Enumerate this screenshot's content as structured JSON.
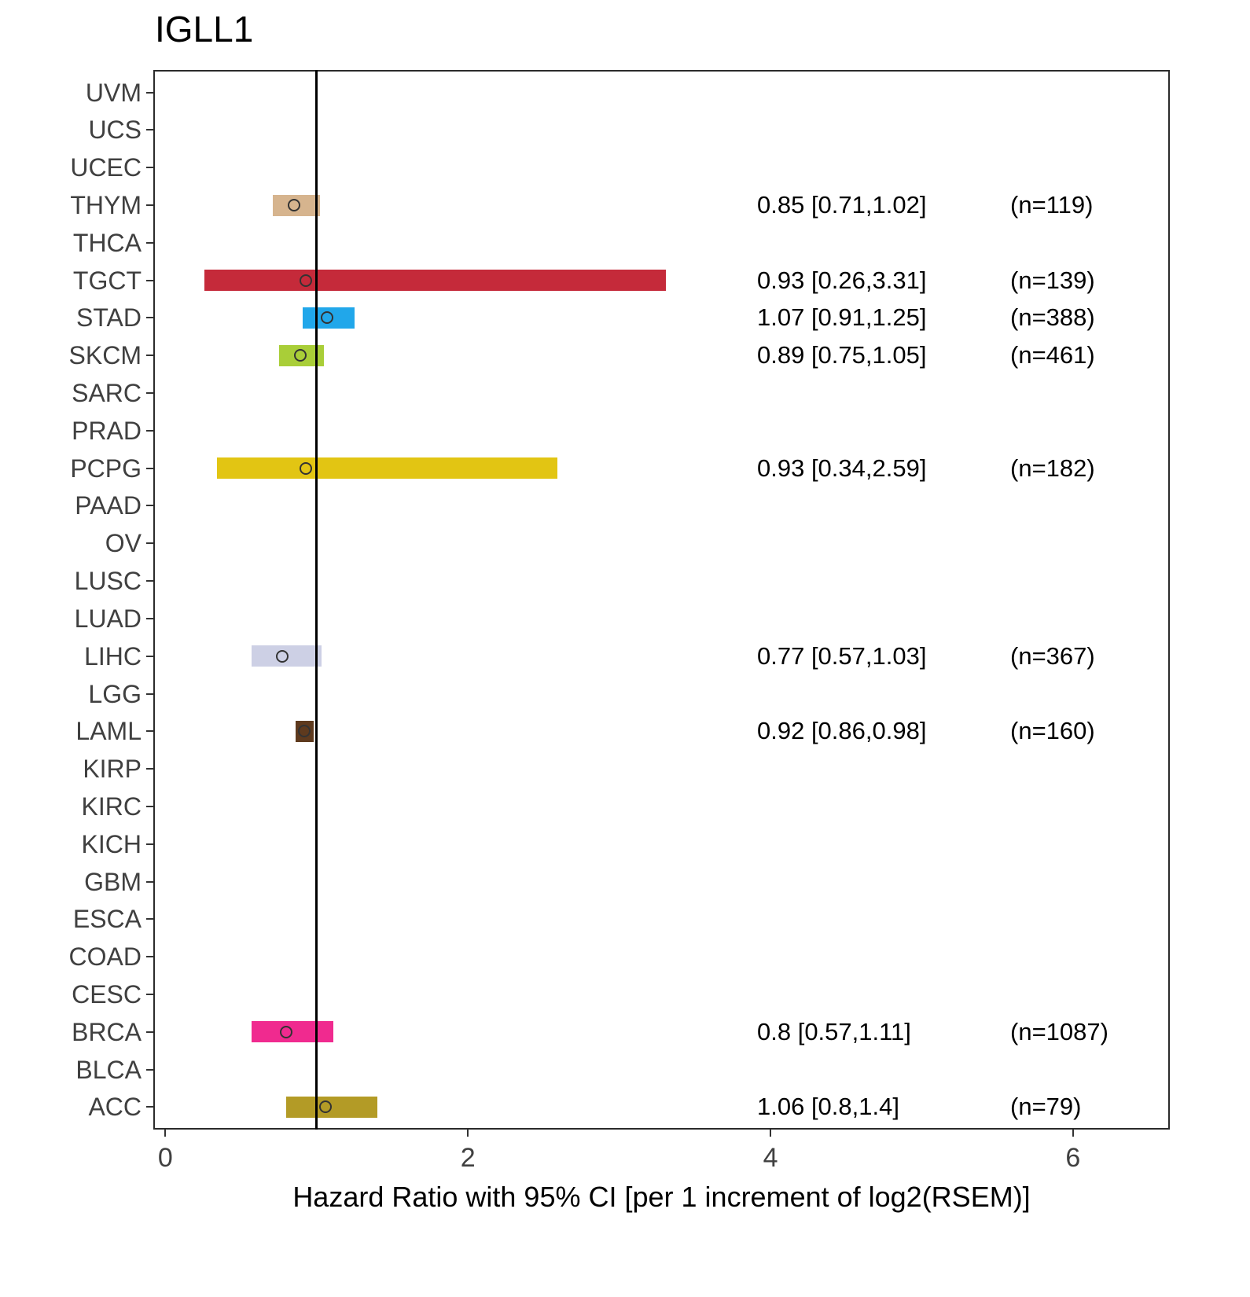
{
  "chart_data": {
    "type": "forest",
    "title": "IGLL1",
    "xlabel": "Hazard Ratio with 95% CI [per 1 increment of log2(RSEM)]",
    "xlim": [
      -0.08,
      6.64
    ],
    "x_ticks": [
      0,
      2,
      4,
      6
    ],
    "reference_line_x": 1,
    "grid": false,
    "legend": "none",
    "rows": [
      {
        "label": "UVM"
      },
      {
        "label": "UCS"
      },
      {
        "label": "UCEC"
      },
      {
        "label": "THYM",
        "estimate": 0.85,
        "lower": 0.71,
        "upper": 1.02,
        "n": 119,
        "color": "#D6B48E",
        "ci_text": "0.85 [0.71,1.02]",
        "n_text": "(n=119)"
      },
      {
        "label": "THCA"
      },
      {
        "label": "TGCT",
        "estimate": 0.93,
        "lower": 0.26,
        "upper": 3.31,
        "n": 139,
        "color": "#C52A3A",
        "ci_text": "0.93 [0.26,3.31]",
        "n_text": "(n=139)"
      },
      {
        "label": "STAD",
        "estimate": 1.07,
        "lower": 0.91,
        "upper": 1.25,
        "n": 388,
        "color": "#21A7EA",
        "ci_text": "1.07 [0.91,1.25]",
        "n_text": "(n=388)"
      },
      {
        "label": "SKCM",
        "estimate": 0.89,
        "lower": 0.75,
        "upper": 1.05,
        "n": 461,
        "color": "#A9CE38",
        "ci_text": "0.89 [0.75,1.05]",
        "n_text": "(n=461)"
      },
      {
        "label": "SARC"
      },
      {
        "label": "PRAD"
      },
      {
        "label": "PCPG",
        "estimate": 0.93,
        "lower": 0.34,
        "upper": 2.59,
        "n": 182,
        "color": "#E2C513",
        "ci_text": "0.93 [0.34,2.59]",
        "n_text": "(n=182)"
      },
      {
        "label": "PAAD"
      },
      {
        "label": "OV"
      },
      {
        "label": "LUSC"
      },
      {
        "label": "LUAD"
      },
      {
        "label": "LIHC",
        "estimate": 0.77,
        "lower": 0.57,
        "upper": 1.03,
        "n": 367,
        "color": "#CDD0E5",
        "ci_text": "0.77 [0.57,1.03]",
        "n_text": "(n=367)"
      },
      {
        "label": "LGG"
      },
      {
        "label": "LAML",
        "estimate": 0.92,
        "lower": 0.86,
        "upper": 0.98,
        "n": 160,
        "color": "#5E3A1E",
        "ci_text": "0.92 [0.86,0.98]",
        "n_text": "(n=160)"
      },
      {
        "label": "KIRP"
      },
      {
        "label": "KIRC"
      },
      {
        "label": "KICH"
      },
      {
        "label": "GBM"
      },
      {
        "label": "ESCA"
      },
      {
        "label": "COAD"
      },
      {
        "label": "CESC"
      },
      {
        "label": "BRCA",
        "estimate": 0.8,
        "lower": 0.57,
        "upper": 1.11,
        "n": 1087,
        "color": "#F02A8F",
        "ci_text": "0.8 [0.57,1.11]",
        "n_text": "(n=1087)"
      },
      {
        "label": "BLCA"
      },
      {
        "label": "ACC",
        "estimate": 1.06,
        "lower": 0.8,
        "upper": 1.4,
        "n": 79,
        "color": "#B39B26",
        "ci_text": "1.06 [0.8,1.4]",
        "n_text": "(n=79)"
      }
    ]
  }
}
